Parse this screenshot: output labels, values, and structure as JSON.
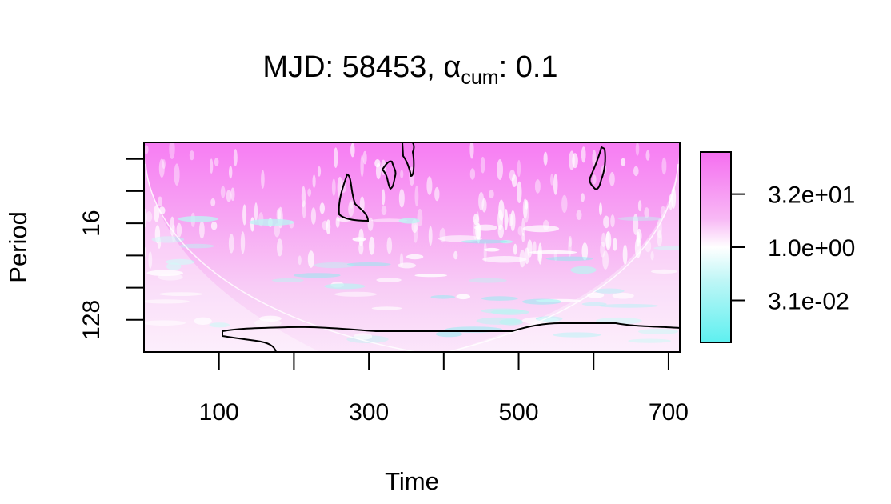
{
  "chart_data": {
    "type": "heatmap",
    "title": {
      "prefix": "MJD: 58453, ",
      "alpha_symbol": "α",
      "alpha_subscript": "cum",
      "suffix": ": 0.1"
    },
    "xlabel": "Time",
    "ylabel": "Period",
    "xlim": [
      0,
      715
    ],
    "x_ticks": [
      100,
      200,
      300,
      400,
      500,
      600,
      700
    ],
    "x_tick_labels": [
      "100",
      "300",
      "500",
      "700"
    ],
    "x_tick_label_values": [
      100,
      300,
      500,
      700
    ],
    "y_scale": "log2",
    "ylim": [
      2.8,
      256
    ],
    "y_ticks": [
      4,
      8,
      16,
      32,
      64,
      128
    ],
    "y_tick_labels": [
      "16",
      "128"
    ],
    "y_tick_label_values": [
      16,
      128
    ],
    "colorbar": {
      "scale": "log",
      "labels": [
        "3.2e+01",
        "1.0e+00",
        "3.1e-02"
      ],
      "label_values": [
        32,
        1.0,
        0.031
      ],
      "colors": {
        "low": "#5ef0f0",
        "mid": "#ffffff",
        "high": "#f56ef0"
      }
    },
    "cone_of_influence": true,
    "significance_contours": 6
  }
}
